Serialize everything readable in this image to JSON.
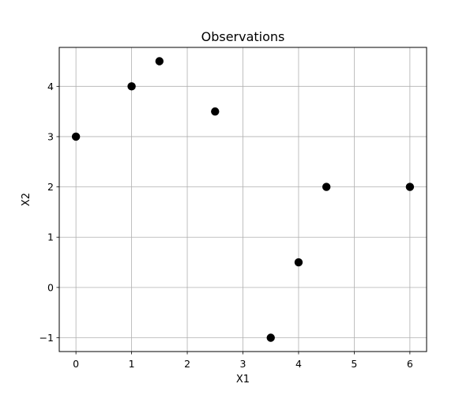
{
  "chart_data": {
    "type": "scatter",
    "title": "Observations",
    "xlabel": "X1",
    "ylabel": "X2",
    "xlim": [
      -0.3,
      6.3
    ],
    "ylim": [
      -1.275,
      4.775
    ],
    "x_ticks": [
      0,
      1,
      2,
      3,
      4,
      5,
      6
    ],
    "y_ticks": [
      -1,
      0,
      1,
      2,
      3,
      4
    ],
    "x_tick_labels": [
      "0",
      "1",
      "2",
      "3",
      "4",
      "5",
      "6"
    ],
    "y_tick_labels": [
      "−1",
      "0",
      "1",
      "2",
      "3",
      "4"
    ],
    "grid": true,
    "series": [
      {
        "color": "#000000",
        "points": [
          {
            "x": 0,
            "y": 3
          },
          {
            "x": 1,
            "y": 4
          },
          {
            "x": 1.5,
            "y": 4.5
          },
          {
            "x": 2.5,
            "y": 3.5
          },
          {
            "x": 3.5,
            "y": -1
          },
          {
            "x": 4,
            "y": 0.5
          },
          {
            "x": 4.5,
            "y": 2
          },
          {
            "x": 6,
            "y": 2
          }
        ]
      }
    ]
  }
}
